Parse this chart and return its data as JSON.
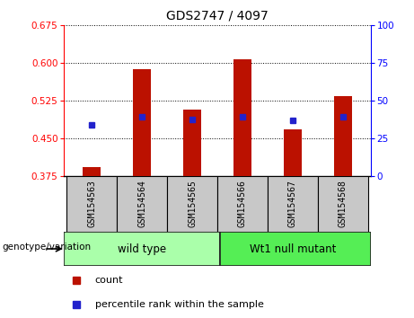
{
  "title": "GDS2747 / 4097",
  "samples": [
    "GSM154563",
    "GSM154564",
    "GSM154565",
    "GSM154566",
    "GSM154567",
    "GSM154568"
  ],
  "bar_bottom": 0.375,
  "bar_tops": [
    0.393,
    0.588,
    0.508,
    0.608,
    0.468,
    0.535
  ],
  "percentile_values": [
    0.478,
    0.493,
    0.488,
    0.493,
    0.487,
    0.493
  ],
  "ylim_left": [
    0.375,
    0.675
  ],
  "ylim_right": [
    0,
    100
  ],
  "yticks_left": [
    0.375,
    0.45,
    0.525,
    0.6,
    0.675
  ],
  "yticks_right": [
    0,
    25,
    50,
    75,
    100
  ],
  "bar_color": "#bb1100",
  "square_color": "#2222cc",
  "sample_box_color": "#c8c8c8",
  "group1_label": "wild type",
  "group2_label": "Wt1 null mutant",
  "group1_color": "#aaffaa",
  "group2_color": "#55ee55",
  "genotype_label": "genotype/variation",
  "legend_count": "count",
  "legend_percentile": "percentile rank within the sample",
  "title_fontsize": 10,
  "tick_fontsize": 7.5,
  "sample_fontsize": 7,
  "group_fontsize": 8.5,
  "legend_fontsize": 8
}
